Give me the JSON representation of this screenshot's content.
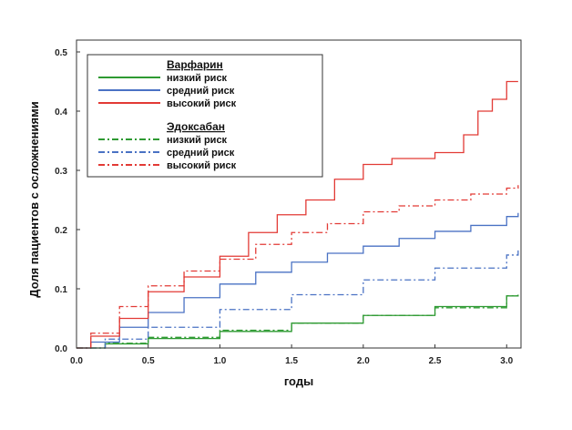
{
  "chart_data": {
    "type": "line",
    "xlabel": "годы",
    "ylabel": "Доля пациентов с осложнениями",
    "xlim": [
      0,
      3.1
    ],
    "ylim": [
      0,
      0.52
    ],
    "xticks": [
      0.0,
      0.5,
      1.0,
      1.5,
      2.0,
      2.5,
      3.0
    ],
    "xtick_labels": [
      "0.0",
      "0.5",
      "1.0",
      "1.5",
      "2.0",
      "2.5",
      "3.0"
    ],
    "yticks": [
      0.0,
      0.1,
      0.2,
      0.3,
      0.4,
      0.5
    ],
    "ytick_labels": [
      "0.0",
      "0.1",
      "0.2",
      "0.3",
      "0.4",
      "0.5"
    ],
    "grid": false,
    "legend_position": "top-left",
    "legend_groups": [
      {
        "title": "Варфарин",
        "entries": [
          {
            "label": "низкий риск",
            "color": "#2e9a32",
            "dash": "solid"
          },
          {
            "label": "средний риск",
            "color": "#4a72c4",
            "dash": "solid"
          },
          {
            "label": "высокий риск",
            "color": "#e23a35",
            "dash": "solid"
          }
        ]
      },
      {
        "title": "Эдоксабан",
        "entries": [
          {
            "label": "низкий риск",
            "color": "#2e9a32",
            "dash": "dashdot"
          },
          {
            "label": "средний риск",
            "color": "#4a72c4",
            "dash": "dashdot"
          },
          {
            "label": "высокий риск",
            "color": "#e23a35",
            "dash": "dashdot"
          }
        ]
      }
    ],
    "series": [
      {
        "name": "Варфарин — низкий риск",
        "color": "#2e9a32",
        "dash": "solid",
        "x": [
          0.0,
          0.2,
          0.5,
          1.0,
          1.5,
          2.0,
          2.5,
          3.0,
          3.08
        ],
        "y": [
          0.0,
          0.007,
          0.016,
          0.028,
          0.042,
          0.055,
          0.07,
          0.088,
          0.09
        ]
      },
      {
        "name": "Варфарин — средний риск",
        "color": "#4a72c4",
        "dash": "solid",
        "x": [
          0.0,
          0.1,
          0.3,
          0.5,
          0.75,
          1.0,
          1.25,
          1.5,
          1.75,
          2.0,
          2.25,
          2.5,
          2.75,
          3.0,
          3.08
        ],
        "y": [
          0.0,
          0.01,
          0.035,
          0.06,
          0.085,
          0.108,
          0.128,
          0.145,
          0.16,
          0.172,
          0.185,
          0.197,
          0.207,
          0.222,
          0.228
        ]
      },
      {
        "name": "Варфарин — высокий риск",
        "color": "#e23a35",
        "dash": "solid",
        "x": [
          0.0,
          0.1,
          0.3,
          0.5,
          0.75,
          1.0,
          1.2,
          1.4,
          1.6,
          1.8,
          2.0,
          2.2,
          2.5,
          2.7,
          2.8,
          2.9,
          3.0,
          3.08
        ],
        "y": [
          0.0,
          0.02,
          0.05,
          0.095,
          0.12,
          0.155,
          0.195,
          0.225,
          0.25,
          0.285,
          0.31,
          0.32,
          0.33,
          0.36,
          0.4,
          0.42,
          0.45,
          0.45
        ]
      },
      {
        "name": "Эдоксабан — низкий риск",
        "color": "#2e9a32",
        "dash": "dashdot",
        "x": [
          0.0,
          0.2,
          0.5,
          1.0,
          1.5,
          2.0,
          2.5,
          3.0,
          3.08
        ],
        "y": [
          0.0,
          0.008,
          0.018,
          0.03,
          0.042,
          0.055,
          0.068,
          0.088,
          0.09
        ]
      },
      {
        "name": "Эдоксабан — средний риск",
        "color": "#4a72c4",
        "dash": "dashdot",
        "x": [
          0.0,
          0.2,
          0.5,
          1.0,
          1.5,
          2.0,
          2.5,
          3.0,
          3.08
        ],
        "y": [
          0.0,
          0.015,
          0.035,
          0.065,
          0.09,
          0.115,
          0.135,
          0.157,
          0.165
        ]
      },
      {
        "name": "Эдоксабан — высокий риск",
        "color": "#e23a35",
        "dash": "dashdot",
        "x": [
          0.0,
          0.1,
          0.3,
          0.5,
          0.75,
          1.0,
          1.25,
          1.5,
          1.75,
          2.0,
          2.25,
          2.5,
          2.75,
          3.0,
          3.08
        ],
        "y": [
          0.0,
          0.025,
          0.07,
          0.105,
          0.13,
          0.15,
          0.175,
          0.195,
          0.21,
          0.23,
          0.24,
          0.25,
          0.26,
          0.27,
          0.275
        ]
      }
    ]
  }
}
